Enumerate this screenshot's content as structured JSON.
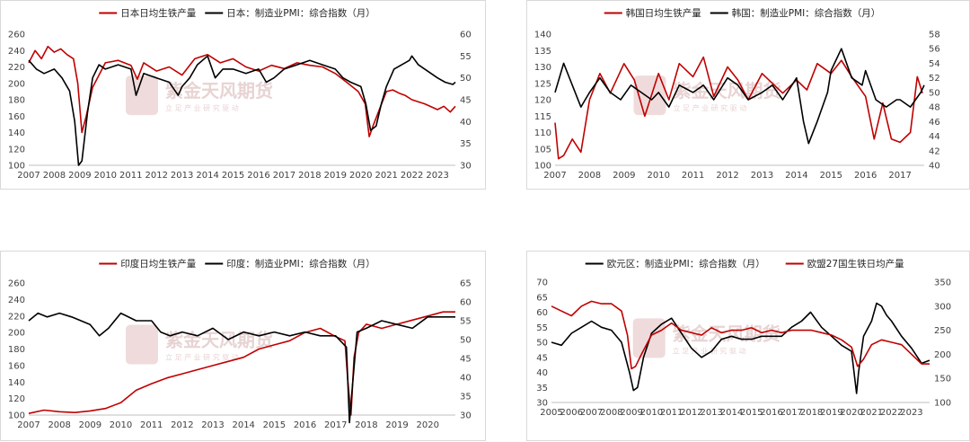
{
  "chart_data": [
    {
      "type": "line",
      "region": "japan",
      "legend": [
        {
          "name": "日本日均生铁产量",
          "color": "#c00000",
          "axis": "left"
        },
        {
          "name": "日本：制造业PMI：综合指数（月）",
          "color": "#000000",
          "axis": "right"
        }
      ],
      "left_axis": {
        "min": 100,
        "max": 260,
        "step": 20
      },
      "right_axis": {
        "min": 30,
        "max": 60,
        "step": 5
      },
      "x_range": [
        2007,
        2023.7
      ],
      "x_labels": [
        "2007",
        "2008",
        "2009",
        "2010",
        "2011",
        "2012",
        "2013",
        "2014",
        "2015",
        "2016",
        "2017",
        "2018",
        "2019",
        "2020",
        "2021",
        "2022",
        "2023"
      ],
      "series": [
        {
          "name": "日本日均生铁产量",
          "axis": "left",
          "color": "#c00000",
          "x": [
            2007.0,
            2007.25,
            2007.5,
            2007.75,
            2008.0,
            2008.25,
            2008.5,
            2008.75,
            2008.92,
            2009.08,
            2009.25,
            2009.5,
            2009.75,
            2010.0,
            2010.5,
            2011.0,
            2011.25,
            2011.5,
            2012.0,
            2012.5,
            2013.0,
            2013.5,
            2014.0,
            2014.5,
            2015.0,
            2015.5,
            2016.0,
            2016.5,
            2017.0,
            2017.5,
            2018.0,
            2018.5,
            2019.0,
            2019.5,
            2019.9,
            2020.17,
            2020.33,
            2020.5,
            2020.75,
            2021.0,
            2021.25,
            2021.5,
            2021.75,
            2022.0,
            2022.5,
            2023.0,
            2023.25,
            2023.5,
            2023.7
          ],
          "y": [
            225,
            240,
            230,
            245,
            238,
            242,
            235,
            230,
            200,
            140,
            160,
            195,
            210,
            225,
            228,
            222,
            205,
            225,
            215,
            220,
            210,
            230,
            235,
            225,
            230,
            220,
            215,
            222,
            218,
            225,
            222,
            220,
            212,
            200,
            190,
            175,
            135,
            150,
            170,
            190,
            192,
            188,
            185,
            180,
            175,
            168,
            172,
            165,
            172
          ]
        },
        {
          "name": "日本：制造业PMI：综合指数（月）",
          "axis": "right",
          "color": "#000000",
          "x": [
            2007.0,
            2007.3,
            2007.6,
            2008.0,
            2008.3,
            2008.6,
            2008.8,
            2008.95,
            2009.08,
            2009.3,
            2009.5,
            2009.75,
            2010.0,
            2010.5,
            2011.0,
            2011.2,
            2011.5,
            2012.0,
            2012.5,
            2012.85,
            2013.0,
            2013.3,
            2013.6,
            2014.0,
            2014.3,
            2014.6,
            2015.0,
            2015.5,
            2016.0,
            2016.3,
            2016.6,
            2017.0,
            2017.5,
            2018.0,
            2018.5,
            2019.0,
            2019.3,
            2019.6,
            2020.0,
            2020.2,
            2020.38,
            2020.6,
            2020.8,
            2021.0,
            2021.3,
            2021.6,
            2021.9,
            2022.0,
            2022.25,
            2022.5,
            2022.75,
            2023.0,
            2023.3,
            2023.6,
            2023.7
          ],
          "y": [
            54,
            52,
            51,
            52,
            50,
            47,
            40,
            30,
            31,
            42,
            50,
            53,
            52,
            53,
            52,
            46,
            51,
            50,
            49,
            46,
            48,
            50,
            53,
            55,
            50,
            52,
            52,
            51,
            52,
            49,
            50,
            52,
            53,
            54,
            53,
            52,
            50,
            49,
            48,
            44,
            38,
            39,
            44,
            48,
            52,
            53,
            54,
            55,
            53,
            52,
            51,
            50,
            49,
            48.5,
            49
          ]
        }
      ]
    },
    {
      "type": "line",
      "region": "korea",
      "legend": [
        {
          "name": "韩国日均生铁产量",
          "color": "#c00000",
          "axis": "left"
        },
        {
          "name": "韩国：制造业PMI：综合指数（月）",
          "color": "#000000",
          "axis": "right"
        }
      ],
      "left_axis": {
        "min": 100,
        "max": 140,
        "step": 5
      },
      "right_axis": {
        "min": 40,
        "max": 58,
        "step": 2
      },
      "x_range": [
        2007,
        2017.7
      ],
      "x_labels": [
        "2007",
        "2008",
        "2009",
        "2010",
        "2011",
        "2012",
        "2013",
        "2014",
        "2015",
        "2016",
        "2017"
      ],
      "series": [
        {
          "name": "韩国日均生铁产量",
          "axis": "left",
          "color": "#c00000",
          "x": [
            2007.0,
            2007.1,
            2007.25,
            2007.5,
            2007.75,
            2008.0,
            2008.3,
            2008.6,
            2009.0,
            2009.3,
            2009.6,
            2010.0,
            2010.3,
            2010.6,
            2011.0,
            2011.3,
            2011.6,
            2012.0,
            2012.3,
            2012.6,
            2013.0,
            2013.3,
            2013.6,
            2014.0,
            2014.3,
            2014.6,
            2015.0,
            2015.3,
            2015.6,
            2016.0,
            2016.25,
            2016.5,
            2016.75,
            2017.0,
            2017.3,
            2017.5,
            2017.65
          ],
          "y": [
            113,
            102,
            103,
            108,
            104,
            120,
            128,
            122,
            131,
            126,
            115,
            128,
            120,
            131,
            127,
            133,
            121,
            130,
            126,
            120,
            128,
            125,
            122,
            126,
            123,
            131,
            128,
            132,
            127,
            121,
            108,
            119,
            108,
            107,
            110,
            127,
            122
          ]
        },
        {
          "name": "韩国：制造业PMI：综合指数（月）",
          "axis": "right",
          "color": "#000000",
          "x": [
            2007.0,
            2007.25,
            2007.5,
            2007.75,
            2008.0,
            2008.3,
            2008.6,
            2008.9,
            2009.2,
            2009.5,
            2009.8,
            2010.0,
            2010.3,
            2010.6,
            2011.0,
            2011.3,
            2011.6,
            2012.0,
            2012.3,
            2012.6,
            2013.0,
            2013.3,
            2013.6,
            2014.0,
            2014.2,
            2014.35,
            2014.6,
            2014.9,
            2015.0,
            2015.3,
            2015.6,
            2015.9,
            2016.0,
            2016.3,
            2016.6,
            2016.9,
            2017.0,
            2017.3,
            2017.6,
            2017.7
          ],
          "y": [
            50,
            54,
            51,
            48,
            50,
            52,
            50,
            49,
            51,
            50,
            49,
            50,
            48,
            51,
            50,
            51,
            49,
            52,
            51,
            49,
            50,
            51,
            49,
            52,
            46,
            43,
            46,
            50,
            53,
            56,
            52,
            51,
            53,
            49,
            48,
            49,
            49,
            48,
            50,
            51
          ]
        }
      ]
    },
    {
      "type": "line",
      "region": "india",
      "legend": [
        {
          "name": "印度日均生铁产量",
          "color": "#c00000",
          "axis": "left"
        },
        {
          "name": "印度：制造业PMI：综合指数（月）",
          "color": "#000000",
          "axis": "right"
        }
      ],
      "left_axis": {
        "min": 100,
        "max": 260,
        "step": 20
      },
      "right_axis": {
        "min": 30,
        "max": 65,
        "step": 5
      },
      "x_range": [
        2007,
        2020.9
      ],
      "x_labels": [
        "2007",
        "2008",
        "2009",
        "2010",
        "2011",
        "2012",
        "2013",
        "2014",
        "2015",
        "2016",
        "2017",
        "2018",
        "2019",
        "2020"
      ],
      "series": [
        {
          "name": "印度日均生铁产量",
          "axis": "left",
          "color": "#c00000",
          "x": [
            2007.0,
            2007.5,
            2008.0,
            2008.5,
            2009.0,
            2009.5,
            2010.0,
            2010.5,
            2011.0,
            2011.5,
            2012.0,
            2012.5,
            2013.0,
            2013.5,
            2014.0,
            2014.5,
            2015.0,
            2015.5,
            2016.0,
            2016.5,
            2017.0,
            2017.3,
            2017.4,
            2017.5,
            2017.6,
            2017.75,
            2018.0,
            2018.5,
            2019.0,
            2019.5,
            2020.0,
            2020.5,
            2020.9
          ],
          "y": [
            102,
            106,
            104,
            103,
            105,
            108,
            115,
            130,
            138,
            145,
            150,
            155,
            160,
            165,
            170,
            180,
            185,
            190,
            200,
            205,
            195,
            190,
            140,
            100,
            170,
            200,
            210,
            205,
            210,
            215,
            220,
            225,
            225
          ]
        },
        {
          "name": "印度：制造业PMI：综合指数（月）",
          "axis": "right",
          "color": "#000000",
          "x": [
            2007.0,
            2007.3,
            2007.6,
            2008.0,
            2008.4,
            2008.7,
            2009.0,
            2009.3,
            2009.6,
            2010.0,
            2010.5,
            2011.0,
            2011.3,
            2011.6,
            2012.0,
            2012.5,
            2013.0,
            2013.5,
            2014.0,
            2014.5,
            2015.0,
            2015.5,
            2016.0,
            2016.5,
            2017.0,
            2017.35,
            2017.45,
            2017.55,
            2017.7,
            2018.0,
            2018.5,
            2019.0,
            2019.5,
            2020.0,
            2020.5,
            2020.9
          ],
          "y": [
            55,
            57,
            56,
            57,
            56,
            55,
            54,
            51,
            53,
            57,
            55,
            55,
            52,
            51,
            52,
            51,
            53,
            50,
            52,
            51,
            52,
            51,
            52,
            51,
            51,
            48,
            28,
            38,
            52,
            53,
            55,
            54,
            53,
            56,
            56,
            56
          ]
        }
      ]
    },
    {
      "type": "line",
      "region": "eurozone",
      "legend": [
        {
          "name": "欧元区：制造业PMI：综合指数（月）",
          "color": "#000000",
          "axis": "left"
        },
        {
          "name": "欧盟27国生铁日均产量",
          "color": "#c00000",
          "axis": "right"
        }
      ],
      "left_axis": {
        "min": 30,
        "max": 70,
        "step": 5
      },
      "right_axis": {
        "min": 100,
        "max": 350,
        "step": 50
      },
      "x_range": [
        2005,
        2023.9
      ],
      "x_labels": [
        "2005",
        "2006",
        "2007",
        "2008",
        "2009",
        "2010",
        "2011",
        "2012",
        "2013",
        "2014",
        "2015",
        "2016",
        "2017",
        "2018",
        "2019",
        "2020",
        "2021",
        "2022",
        "2023"
      ],
      "series": [
        {
          "name": "欧元区：制造业PMI：综合指数（月）",
          "axis": "left",
          "color": "#000000",
          "x": [
            2005.0,
            2005.5,
            2006.0,
            2006.5,
            2007.0,
            2007.5,
            2008.0,
            2008.5,
            2008.9,
            2009.1,
            2009.3,
            2009.6,
            2010.0,
            2010.5,
            2011.0,
            2011.5,
            2012.0,
            2012.5,
            2013.0,
            2013.5,
            2014.0,
            2014.5,
            2015.0,
            2015.5,
            2016.0,
            2016.5,
            2017.0,
            2017.5,
            2017.95,
            2018.5,
            2019.0,
            2019.5,
            2020.0,
            2020.25,
            2020.35,
            2020.6,
            2021.0,
            2021.25,
            2021.5,
            2021.75,
            2022.0,
            2022.5,
            2023.0,
            2023.5,
            2023.9
          ],
          "y": [
            50,
            49,
            53,
            55,
            57,
            55,
            54,
            50,
            40,
            34,
            35,
            45,
            53,
            56,
            58,
            53,
            48,
            45,
            47,
            51,
            52,
            51,
            51,
            52,
            52,
            52,
            55,
            57,
            60,
            55,
            52,
            49,
            47,
            33,
            40,
            52,
            57,
            63,
            62,
            59,
            57,
            52,
            48,
            43,
            44
          ]
        },
        {
          "name": "欧盟27国生铁日均产量",
          "axis": "right",
          "color": "#c00000",
          "x": [
            2005.0,
            2005.5,
            2006.0,
            2006.5,
            2007.0,
            2007.5,
            2008.0,
            2008.5,
            2008.8,
            2009.0,
            2009.2,
            2009.5,
            2010.0,
            2010.5,
            2011.0,
            2011.5,
            2012.0,
            2012.5,
            2013.0,
            2013.5,
            2014.0,
            2014.5,
            2015.0,
            2015.5,
            2016.0,
            2016.5,
            2017.0,
            2017.5,
            2018.0,
            2018.5,
            2019.0,
            2019.5,
            2020.0,
            2020.3,
            2020.6,
            2021.0,
            2021.5,
            2022.0,
            2022.5,
            2023.0,
            2023.5,
            2023.9
          ],
          "y": [
            300,
            290,
            280,
            300,
            310,
            305,
            305,
            290,
            240,
            170,
            175,
            200,
            240,
            250,
            265,
            250,
            245,
            240,
            255,
            245,
            250,
            250,
            255,
            245,
            250,
            245,
            250,
            250,
            250,
            245,
            240,
            230,
            215,
            175,
            190,
            220,
            230,
            225,
            220,
            200,
            180,
            180
          ]
        }
      ]
    }
  ],
  "watermark": {
    "name": "紫金天风期货",
    "slogan": "立 足 产 业   研 究 驱 动"
  }
}
